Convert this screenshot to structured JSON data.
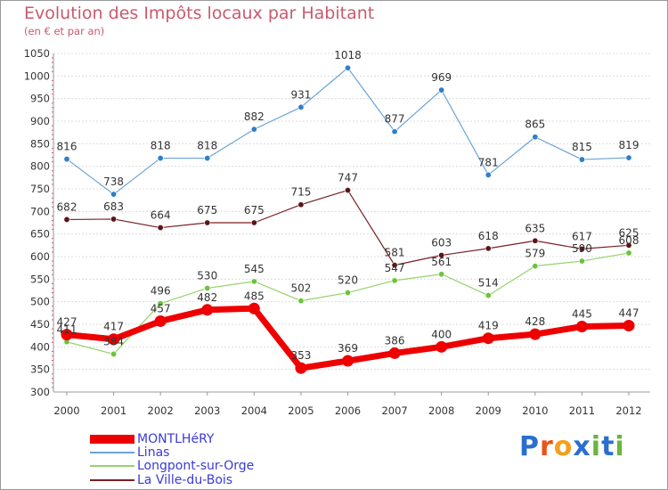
{
  "title": "Evolution des Impôts locaux par Habitant",
  "subtitle": "(en € et par an)",
  "logo": {
    "text": "Proxiti",
    "letters": [
      "P",
      "r",
      "o",
      "x",
      "i",
      "t",
      "i"
    ],
    "colors": [
      "#2a6fcf",
      "#e8531f",
      "#f2a01d",
      "#2a6fcf",
      "#6cb43f",
      "#2a6fcf",
      "#6cb43f"
    ]
  },
  "chart_data": {
    "type": "line",
    "title": "Evolution des Impôts locaux par Habitant",
    "subtitle": "(en € et par an)",
    "xlabel": "",
    "ylabel": "",
    "x": [
      "2000",
      "2001",
      "2002",
      "2003",
      "2004",
      "2005",
      "2006",
      "2007",
      "2008",
      "2009",
      "2010",
      "2011",
      "2012"
    ],
    "ylim": [
      300,
      1050
    ],
    "yticks": [
      300,
      350,
      400,
      450,
      500,
      550,
      600,
      650,
      700,
      750,
      800,
      850,
      900,
      950,
      1000,
      1050
    ],
    "grid": "horizontal",
    "legend_position": "bottom-left",
    "series": [
      {
        "name": "MONTLHéRY",
        "color": "#ee0000",
        "values": [
          427,
          417,
          457,
          482,
          485,
          353,
          369,
          386,
          400,
          419,
          428,
          445,
          447
        ]
      },
      {
        "name": "Linas",
        "color": "#6aa3d8",
        "values": [
          816,
          738,
          818,
          818,
          882,
          931,
          1018,
          877,
          969,
          781,
          865,
          815,
          819
        ]
      },
      {
        "name": "Longpont-sur-Orge",
        "color": "#94d36a",
        "values": [
          411,
          384,
          496,
          530,
          545,
          502,
          520,
          547,
          561,
          514,
          579,
          590,
          608
        ]
      },
      {
        "name": "La Ville-du-Bois",
        "color": "#7a1f24",
        "values": [
          682,
          683,
          664,
          675,
          675,
          715,
          747,
          581,
          603,
          618,
          635,
          617,
          625
        ]
      }
    ]
  }
}
